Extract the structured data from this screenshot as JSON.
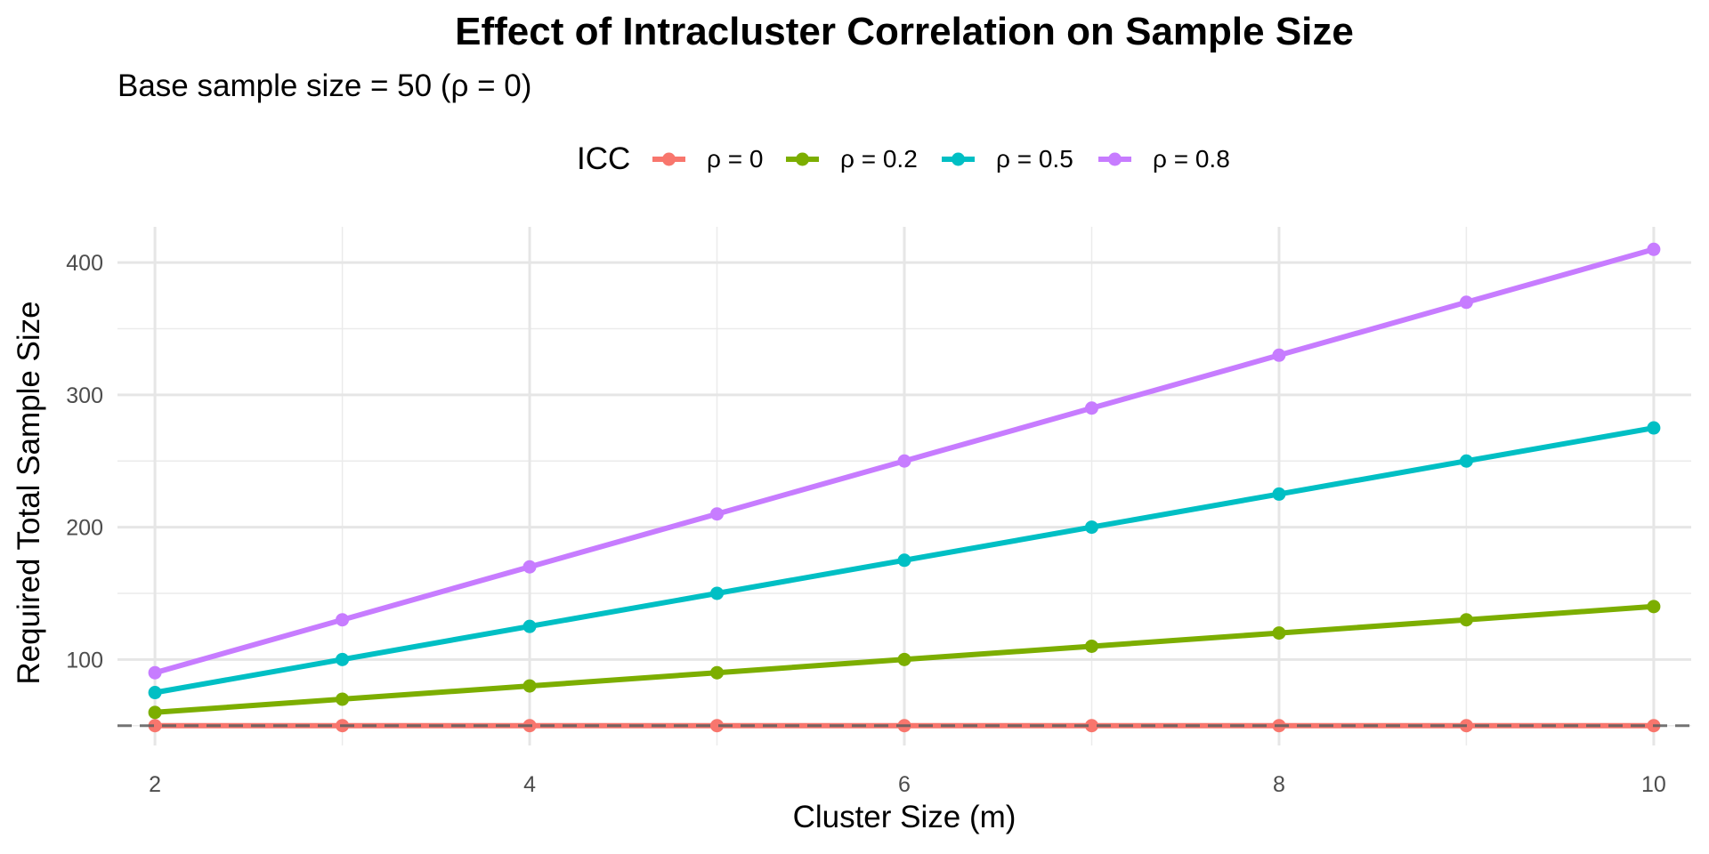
{
  "chart_data": {
    "type": "line",
    "title": "Effect of Intracluster Correlation on Sample Size",
    "subtitle": "Base sample size = 50 (ρ = 0)",
    "xlabel": "Cluster Size (m)",
    "ylabel": "Required Total Sample Size",
    "x": [
      2,
      3,
      4,
      5,
      6,
      7,
      8,
      9,
      10
    ],
    "xlim": [
      1.8,
      10.2
    ],
    "ylim": [
      35,
      427
    ],
    "x_ticks": [
      2,
      4,
      6,
      8,
      10
    ],
    "y_ticks": [
      100,
      200,
      300,
      400
    ],
    "grid": true,
    "legend": {
      "title": "ICC",
      "position": "top"
    },
    "reference_line": {
      "y": 50,
      "style": "dashed",
      "color": "#7f7f7f"
    },
    "series": [
      {
        "name": "ρ = 0",
        "color": "#F8766D",
        "values": [
          50,
          50,
          50,
          50,
          50,
          50,
          50,
          50,
          50
        ]
      },
      {
        "name": "ρ = 0.2",
        "color": "#7CAE00",
        "values": [
          60,
          70,
          80,
          90,
          100,
          110,
          120,
          130,
          140
        ]
      },
      {
        "name": "ρ = 0.5",
        "color": "#00BFC4",
        "values": [
          75,
          100,
          125,
          150,
          175,
          200,
          225,
          250,
          275
        ]
      },
      {
        "name": "ρ = 0.8",
        "color": "#C77CFF",
        "values": [
          90,
          130,
          170,
          210,
          250,
          290,
          330,
          370,
          410
        ]
      }
    ]
  }
}
